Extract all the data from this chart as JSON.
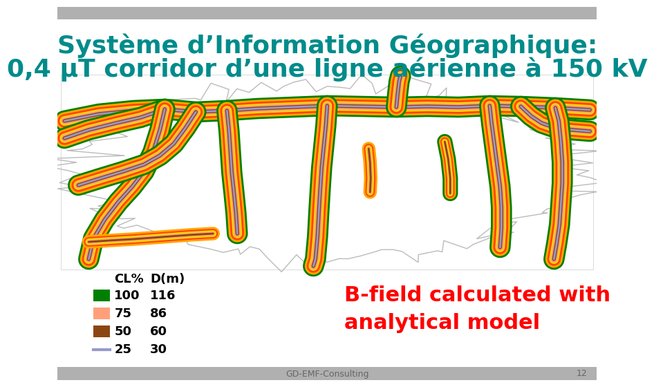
{
  "title_line1": "Système d’Information Géographique:",
  "title_line2": "0,4 μT corridor d’une ligne aérienne à 150 kV",
  "title_color": "#008B8B",
  "title_fontsize": 26,
  "bg_color": "#ffffff",
  "legend_items": [
    {
      "cl": "100",
      "d": "116",
      "color": "#008000"
    },
    {
      "cl": "75",
      "d": "86",
      "color": "#FFA07A"
    },
    {
      "cl": "50",
      "d": "60",
      "color": "#8B4513"
    },
    {
      "cl": "25",
      "d": "30",
      "color": "#9999CC"
    }
  ],
  "legend_header_cl": "CL%",
  "legend_header_d": "D(m)",
  "bfield_text_line1": "B-field calculated with",
  "bfield_text_line2": "analytical model",
  "bfield_color": "#FF0000",
  "bfield_fontsize": 22,
  "footer_text": "GD-EMF-Consulting",
  "footer_page": "12",
  "footer_color": "#666666",
  "corridor_colors_full": [
    "#008000",
    "#FFA500",
    "#FF4500",
    "#FFD700",
    "#FFA07A",
    "#8B4513",
    "#9999CC"
  ],
  "corridor_widths_full": [
    22,
    18,
    14,
    10,
    7,
    4,
    2
  ],
  "header_color": "#b0b0b0",
  "map_border_color": "#cccccc"
}
